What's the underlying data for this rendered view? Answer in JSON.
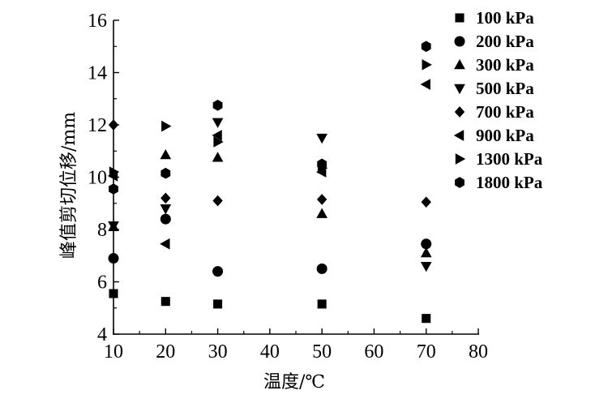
{
  "chart_data": {
    "type": "scatter",
    "xlabel": "温度/℃",
    "ylabel": "峰值剪切位移/mm",
    "xlim": [
      10,
      80
    ],
    "ylim": [
      4,
      16
    ],
    "x_ticks": [
      "10",
      "20",
      "30",
      "40",
      "50",
      "60",
      "70",
      "80"
    ],
    "y_ticks": [
      "4",
      "6",
      "8",
      "10",
      "12",
      "14",
      "16"
    ],
    "legend_position": "top-right",
    "grid": false,
    "marker_color": "#000000",
    "series": [
      {
        "name": "100 kPa",
        "marker": "square",
        "x": [
          10,
          20,
          30,
          50,
          70
        ],
        "y": [
          5.55,
          5.25,
          5.15,
          5.15,
          4.6
        ]
      },
      {
        "name": "200 kPa",
        "marker": "circle",
        "x": [
          10,
          20,
          30,
          50,
          70
        ],
        "y": [
          6.9,
          8.4,
          6.4,
          6.5,
          7.45
        ]
      },
      {
        "name": "300 kPa",
        "marker": "triangle-up",
        "x": [
          10,
          20,
          30,
          50,
          70
        ],
        "y": [
          8.1,
          10.85,
          10.75,
          8.6,
          7.1
        ]
      },
      {
        "name": "500 kPa",
        "marker": "triangle-down",
        "x": [
          10,
          20,
          30,
          50,
          70
        ],
        "y": [
          8.15,
          8.8,
          12.1,
          11.5,
          6.6
        ]
      },
      {
        "name": "700 kPa",
        "marker": "diamond",
        "x": [
          10,
          20,
          30,
          50,
          70
        ],
        "y": [
          12.0,
          9.2,
          9.1,
          9.15,
          9.05
        ]
      },
      {
        "name": "900 kPa",
        "marker": "triangle-left",
        "x": [
          10,
          20,
          30,
          50,
          70
        ],
        "y": [
          10.05,
          7.45,
          11.6,
          10.2,
          13.55
        ]
      },
      {
        "name": "1300 kPa",
        "marker": "triangle-right",
        "x": [
          10,
          20,
          30,
          50,
          70
        ],
        "y": [
          10.2,
          11.95,
          11.35,
          10.35,
          14.3
        ]
      },
      {
        "name": "1800 kPa",
        "marker": "hexagon",
        "x": [
          10,
          20,
          30,
          50,
          70
        ],
        "y": [
          9.55,
          10.15,
          12.75,
          10.5,
          15.0
        ]
      }
    ]
  }
}
